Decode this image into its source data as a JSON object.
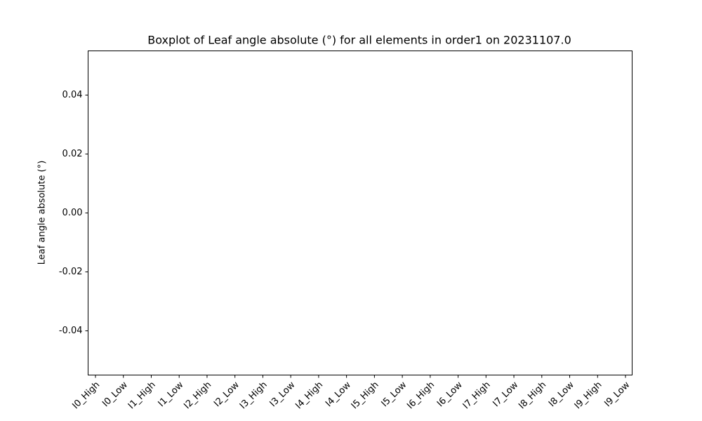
{
  "chart_data": {
    "type": "box",
    "title": "Boxplot of Leaf angle absolute (°) for all elements in order1 on 20231107.0",
    "y_label": "Leaf angle absolute (°)",
    "categories": [
      "I0_High",
      "I0_Low",
      "I1_High",
      "I1_Low",
      "I2_High",
      "I2_Low",
      "I3_High",
      "I3_Low",
      "I4_High",
      "I4_Low",
      "I5_High",
      "I5_Low",
      "I6_High",
      "I6_Low",
      "I7_High",
      "I7_Low",
      "I8_High",
      "I8_Low",
      "I9_High",
      "I9_Low"
    ],
    "ylim": [
      -0.055,
      0.055
    ],
    "yticks": [
      -0.04,
      -0.02,
      {
        "value": 0,
        "label": "0.00"
      },
      0.02,
      0.04
    ],
    "grid": false
  }
}
